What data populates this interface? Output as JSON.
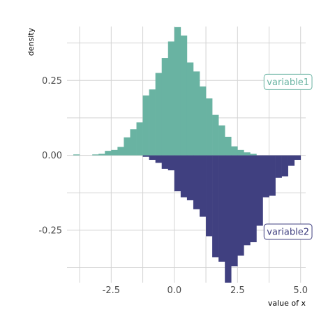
{
  "chart_data": {
    "type": "bar",
    "subtype": "mirrored-histogram",
    "xlabel": "value of x",
    "ylabel": "density",
    "xlim": [
      -4.25,
      5.2
    ],
    "ylim": [
      -0.425,
      0.43
    ],
    "x_ticks": [
      -2.5,
      0.0,
      2.5,
      5.0
    ],
    "x_tick_labels": [
      "-2.5",
      "0.0",
      "2.5",
      "5.0"
    ],
    "y_ticks": [
      0.25,
      0.0,
      -0.25
    ],
    "y_tick_labels": [
      "0.25",
      "0.00",
      "-0.25"
    ],
    "grid": true,
    "bin_width": 0.25,
    "series": [
      {
        "name": "variable1",
        "color": "#69b3a2",
        "direction": "up",
        "bins": [
          {
            "x0": -4.0,
            "y": 0.003
          },
          {
            "x0": -3.25,
            "y": 0.003
          },
          {
            "x0": -3.0,
            "y": 0.005
          },
          {
            "x0": -2.75,
            "y": 0.015
          },
          {
            "x0": -2.5,
            "y": 0.018
          },
          {
            "x0": -2.25,
            "y": 0.028
          },
          {
            "x0": -2.0,
            "y": 0.06
          },
          {
            "x0": -1.75,
            "y": 0.087
          },
          {
            "x0": -1.5,
            "y": 0.11
          },
          {
            "x0": -1.25,
            "y": 0.2
          },
          {
            "x0": -1.0,
            "y": 0.22
          },
          {
            "x0": -0.75,
            "y": 0.275
          },
          {
            "x0": -0.5,
            "y": 0.325
          },
          {
            "x0": -0.25,
            "y": 0.38
          },
          {
            "x0": 0.0,
            "y": 0.428
          },
          {
            "x0": 0.25,
            "y": 0.4
          },
          {
            "x0": 0.5,
            "y": 0.31
          },
          {
            "x0": 0.75,
            "y": 0.28
          },
          {
            "x0": 1.0,
            "y": 0.23
          },
          {
            "x0": 1.25,
            "y": 0.19
          },
          {
            "x0": 1.5,
            "y": 0.135
          },
          {
            "x0": 1.75,
            "y": 0.1
          },
          {
            "x0": 2.0,
            "y": 0.062
          },
          {
            "x0": 2.25,
            "y": 0.03
          },
          {
            "x0": 2.5,
            "y": 0.018
          },
          {
            "x0": 2.75,
            "y": 0.01
          },
          {
            "x0": 3.0,
            "y": 0.005
          }
        ]
      },
      {
        "name": "variable2",
        "color": "#404080",
        "direction": "down",
        "bins": [
          {
            "x0": -1.25,
            "y": 0.005
          },
          {
            "x0": -1.0,
            "y": 0.015
          },
          {
            "x0": -0.75,
            "y": 0.025
          },
          {
            "x0": -0.5,
            "y": 0.045
          },
          {
            "x0": -0.25,
            "y": 0.05
          },
          {
            "x0": 0.0,
            "y": 0.12
          },
          {
            "x0": 0.25,
            "y": 0.14
          },
          {
            "x0": 0.5,
            "y": 0.15
          },
          {
            "x0": 0.75,
            "y": 0.18
          },
          {
            "x0": 1.0,
            "y": 0.205
          },
          {
            "x0": 1.25,
            "y": 0.27
          },
          {
            "x0": 1.5,
            "y": 0.34
          },
          {
            "x0": 1.75,
            "y": 0.355
          },
          {
            "x0": 2.0,
            "y": 0.425
          },
          {
            "x0": 2.25,
            "y": 0.37
          },
          {
            "x0": 2.5,
            "y": 0.335
          },
          {
            "x0": 2.75,
            "y": 0.3
          },
          {
            "x0": 3.0,
            "y": 0.29
          },
          {
            "x0": 3.25,
            "y": 0.235
          },
          {
            "x0": 3.5,
            "y": 0.14
          },
          {
            "x0": 3.75,
            "y": 0.135
          },
          {
            "x0": 4.0,
            "y": 0.075
          },
          {
            "x0": 4.25,
            "y": 0.07
          },
          {
            "x0": 4.5,
            "y": 0.035
          },
          {
            "x0": 4.75,
            "y": 0.015
          }
        ]
      }
    ],
    "annotations": [
      {
        "text": "variable1",
        "x": 4.5,
        "y": 0.245,
        "color": "#69b3a2"
      },
      {
        "text": "variable2",
        "x": 4.5,
        "y": -0.255,
        "color": "#404080"
      }
    ]
  }
}
